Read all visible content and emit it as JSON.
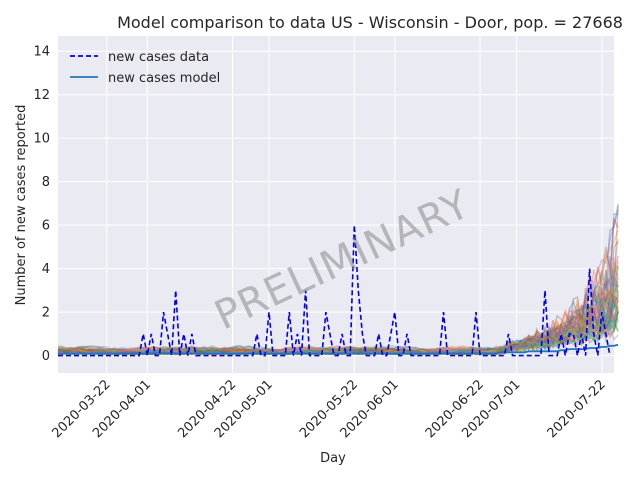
{
  "chart_data": {
    "type": "line",
    "title": "Model comparison to data US - Wisconsin - Door, pop. = 27668",
    "xlabel": "Day",
    "ylabel": "Number of new cases reported",
    "watermark": "PRELIMINARY",
    "x_start": "2020-03-10",
    "x_end": "2020-07-25",
    "ylim": [
      -0.8,
      14.7
    ],
    "y_ticks": [
      0,
      2,
      4,
      6,
      8,
      10,
      12,
      14
    ],
    "x_ticks": [
      "2020-03-22",
      "2020-04-01",
      "2020-04-22",
      "2020-05-01",
      "2020-05-22",
      "2020-06-01",
      "2020-06-22",
      "2020-07-01",
      "2020-07-22"
    ],
    "grid": true,
    "legend_position": "top-left",
    "legend": [
      {
        "label": "new cases data",
        "style": "dashed",
        "color": "#0000ee"
      },
      {
        "label": "new cases model",
        "style": "solid",
        "color": "#1f77b4"
      }
    ],
    "series": [
      {
        "name": "new cases data",
        "x_start": "2020-03-10",
        "values": [
          0,
          0,
          0,
          0,
          0,
          0,
          0,
          0,
          0,
          0,
          0,
          0,
          0,
          0,
          0,
          0,
          0,
          0,
          0,
          0,
          0,
          1,
          0,
          1,
          0,
          0,
          2,
          1,
          0,
          3,
          0,
          1,
          0,
          1,
          0,
          0,
          0,
          0,
          0,
          0,
          0,
          0,
          0,
          0,
          0,
          0,
          0,
          0,
          0,
          1,
          0,
          0,
          2,
          0,
          0,
          0,
          0,
          2,
          0,
          1,
          0,
          3,
          0,
          0,
          0,
          0,
          2,
          1,
          0,
          0,
          1,
          0,
          0,
          6,
          3,
          1,
          0,
          0,
          0,
          1,
          0,
          0,
          1,
          2,
          0,
          0,
          1,
          0,
          0,
          0,
          0,
          0,
          0,
          0,
          0,
          2,
          0,
          0,
          0,
          0,
          0,
          0,
          0,
          2,
          0,
          0,
          0,
          0,
          0,
          0,
          0,
          1,
          0,
          0,
          0,
          0,
          0,
          0,
          0,
          0,
          3,
          0,
          0,
          0,
          1,
          0,
          1,
          1,
          0,
          1,
          0,
          4,
          1,
          0,
          2,
          1,
          0
        ]
      },
      {
        "name": "new cases model",
        "x_start": "2020-03-10",
        "values": [
          0.1,
          0.1,
          0.1,
          0.1,
          0.1,
          0.1,
          0.1,
          0.1,
          0.1,
          0.1,
          0.1,
          0.1,
          0.1,
          0.1,
          0.1,
          0.1,
          0.1,
          0.1,
          0.1,
          0.1,
          0.1,
          0.1,
          0.1,
          0.1,
          0.1,
          0.1,
          0.1,
          0.1,
          0.1,
          0.1,
          0.1,
          0.1,
          0.1,
          0.1,
          0.1,
          0.1,
          0.1,
          0.1,
          0.1,
          0.1,
          0.1,
          0.1,
          0.1,
          0.1,
          0.1,
          0.1,
          0.1,
          0.1,
          0.1,
          0.1,
          0.1,
          0.1,
          0.1,
          0.1,
          0.1,
          0.1,
          0.1,
          0.1,
          0.1,
          0.1,
          0.1,
          0.1,
          0.1,
          0.1,
          0.1,
          0.1,
          0.1,
          0.1,
          0.1,
          0.1,
          0.1,
          0.1,
          0.1,
          0.1,
          0.1,
          0.1,
          0.1,
          0.1,
          0.1,
          0.1,
          0.1,
          0.1,
          0.1,
          0.1,
          0.1,
          0.1,
          0.1,
          0.1,
          0.1,
          0.1,
          0.1,
          0.1,
          0.1,
          0.1,
          0.1,
          0.1,
          0.1,
          0.1,
          0.1,
          0.1,
          0.1,
          0.1,
          0.1,
          0.1,
          0.1,
          0.1,
          0.1,
          0.1,
          0.1,
          0.15,
          0.15,
          0.15,
          0.15,
          0.15,
          0.15,
          0.15,
          0.2,
          0.2,
          0.2,
          0.2,
          0.2,
          0.2,
          0.2,
          0.2,
          0.25,
          0.25,
          0.3,
          0.3,
          0.3,
          0.3,
          0.3,
          0.35,
          0.35,
          0.35,
          0.4,
          0.4,
          0.45,
          0.45,
          0.5
        ]
      }
    ],
    "ensemble_colors": [
      "#1f77b4",
      "#ff7f0e",
      "#2ca02c",
      "#d62728",
      "#9467bd",
      "#8c564b",
      "#e377c2",
      "#7f7f7f",
      "#bcbd22",
      "#17becf"
    ]
  }
}
